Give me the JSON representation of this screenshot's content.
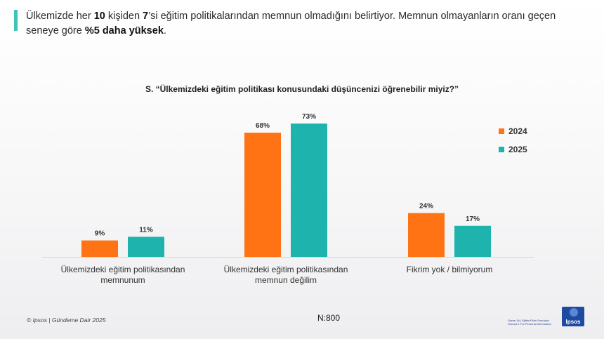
{
  "headline": {
    "part1": "Ülkemizde her ",
    "bold1": "10",
    "part2": " kişiden ",
    "bold2": "7",
    "part3": "’si eğitim politikalarından memnun olmadığını belirtiyor. Memnun olmayanların oranı geçen seneye göre ",
    "bold3": "%5 daha yüksek",
    "part4": "."
  },
  "footer": {
    "source": "© Ipsos | Gündeme Dair 2025",
    "sample": "N:800",
    "tiny": "Game 1A | Eğitim Ekim Sonuçları\nInternal 1 For Personal Information",
    "logo": "Ipsos"
  },
  "colors": {
    "accent": "#3cc6b8",
    "s2024": "#ff7314",
    "s2025": "#1fb3ad"
  },
  "chart_data": {
    "type": "bar",
    "title": "S. “Ülkemizdeki eğitim politikası konusundaki düşüncenizi öğrenebilir miyiz?”",
    "categories": [
      [
        "Ülkemizdeki eğitim politikasından",
        "memnunum"
      ],
      [
        "Ülkemizdeki eğitim politikasından",
        "memnun değilim"
      ],
      [
        "Fikrim yok / bilmiyorum"
      ]
    ],
    "series": [
      {
        "name": "2024",
        "values": [
          9,
          68,
          24
        ],
        "labels": [
          "9%",
          "68%",
          "24%"
        ]
      },
      {
        "name": "2025",
        "values": [
          11,
          73,
          17
        ],
        "labels": [
          "11%",
          "73%",
          "17%"
        ]
      }
    ],
    "ylim": [
      0,
      73
    ],
    "legend": "right",
    "grid": false
  }
}
